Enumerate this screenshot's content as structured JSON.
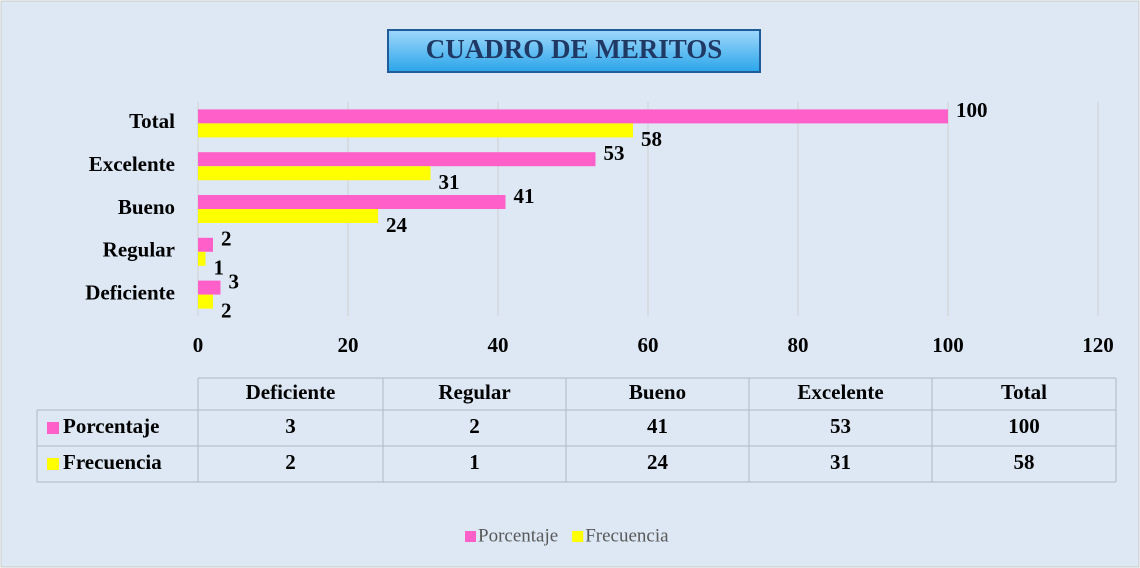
{
  "chart_data": {
    "type": "bar",
    "orientation": "horizontal",
    "title": "CUADRO DE MERITOS",
    "categories": [
      "Deficiente",
      "Regular",
      "Bueno",
      "Excelente",
      "Total"
    ],
    "series": [
      {
        "name": "Porcentaje",
        "color": "#ff5fc8",
        "values": [
          3,
          2,
          41,
          53,
          100
        ]
      },
      {
        "name": "Frecuencia",
        "color": "#ffff00",
        "values": [
          2,
          1,
          24,
          31,
          58
        ]
      }
    ],
    "xlim": [
      0,
      120
    ],
    "xticks": [
      0,
      20,
      40,
      60,
      80,
      100,
      120
    ],
    "grid": true,
    "data_table": true,
    "legend": "bottom"
  }
}
